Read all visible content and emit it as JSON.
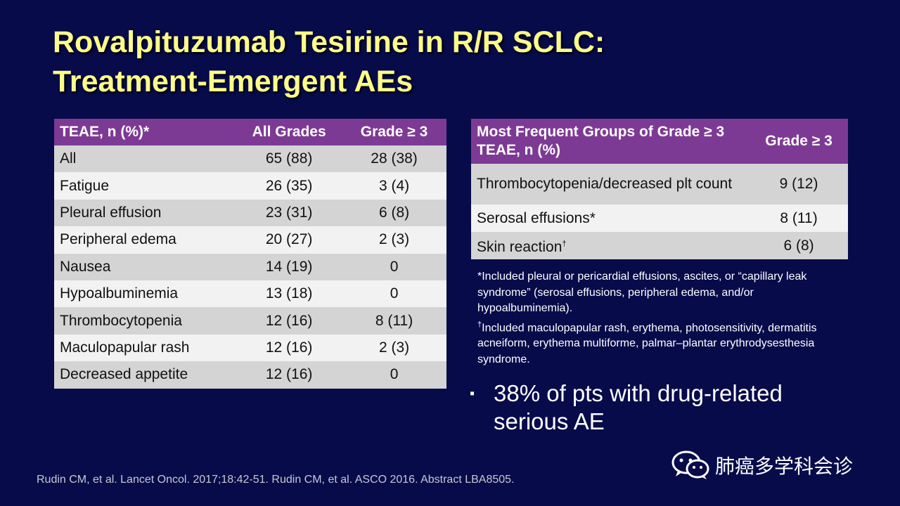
{
  "title": {
    "line1": "Rovalpituzumab Tesirine in R/R SCLC:",
    "line2": "Treatment-Emergent AEs"
  },
  "left_table": {
    "headers": [
      "TEAE, n (%)*",
      "All Grades",
      "Grade ≥ 3"
    ],
    "rows": [
      [
        "All",
        "65 (88)",
        "28 (38)"
      ],
      [
        "Fatigue",
        "26 (35)",
        "3 (4)"
      ],
      [
        "Pleural effusion",
        "23 (31)",
        "6 (8)"
      ],
      [
        "Peripheral edema",
        "20 (27)",
        "2 (3)"
      ],
      [
        "Nausea",
        "14 (19)",
        "0"
      ],
      [
        "Hypoalbuminemia",
        "13 (18)",
        "0"
      ],
      [
        "Thrombocytopenia",
        "12 (16)",
        "8 (11)"
      ],
      [
        "Maculopapular rash",
        "12 (16)",
        "2 (3)"
      ],
      [
        "Decreased appetite",
        "12 (16)",
        "0"
      ]
    ]
  },
  "right_table": {
    "headers": [
      "Most Frequent Groups of Grade ≥ 3 TEAE, n (%)",
      "Grade ≥ 3"
    ],
    "rows": [
      {
        "label": "Thrombocytopenia/decreased plt count",
        "sup": "",
        "value": "9 (12)"
      },
      {
        "label": "Serosal effusions*",
        "sup": "",
        "value": "8 (11)"
      },
      {
        "label": "Skin reaction",
        "sup": "†",
        "value": "6 (8)"
      }
    ]
  },
  "footnotes": {
    "note1": "*Included pleural or pericardial effusions, ascites, or “capillary leak syndrome” (serosal effusions, peripheral edema, and/or hypoalbuminemia).",
    "note2_marker": "†",
    "note2": "Included maculopapular rash, erythema, photosensitivity, dermatitis acneiform, erythema multiforme, palmar–plantar erythrodysesthesia syndrome."
  },
  "bullet": {
    "marker": "▪",
    "text": "38% of pts with drug-related serious AE"
  },
  "citation": "Rudin CM, et al. Lancet Oncol. 2017;18:42-51. Rudin CM, et al. ASCO 2016. Abstract LBA8505.",
  "watermark": {
    "icon": "wechat-icon",
    "text": "肺癌多学科会诊"
  }
}
